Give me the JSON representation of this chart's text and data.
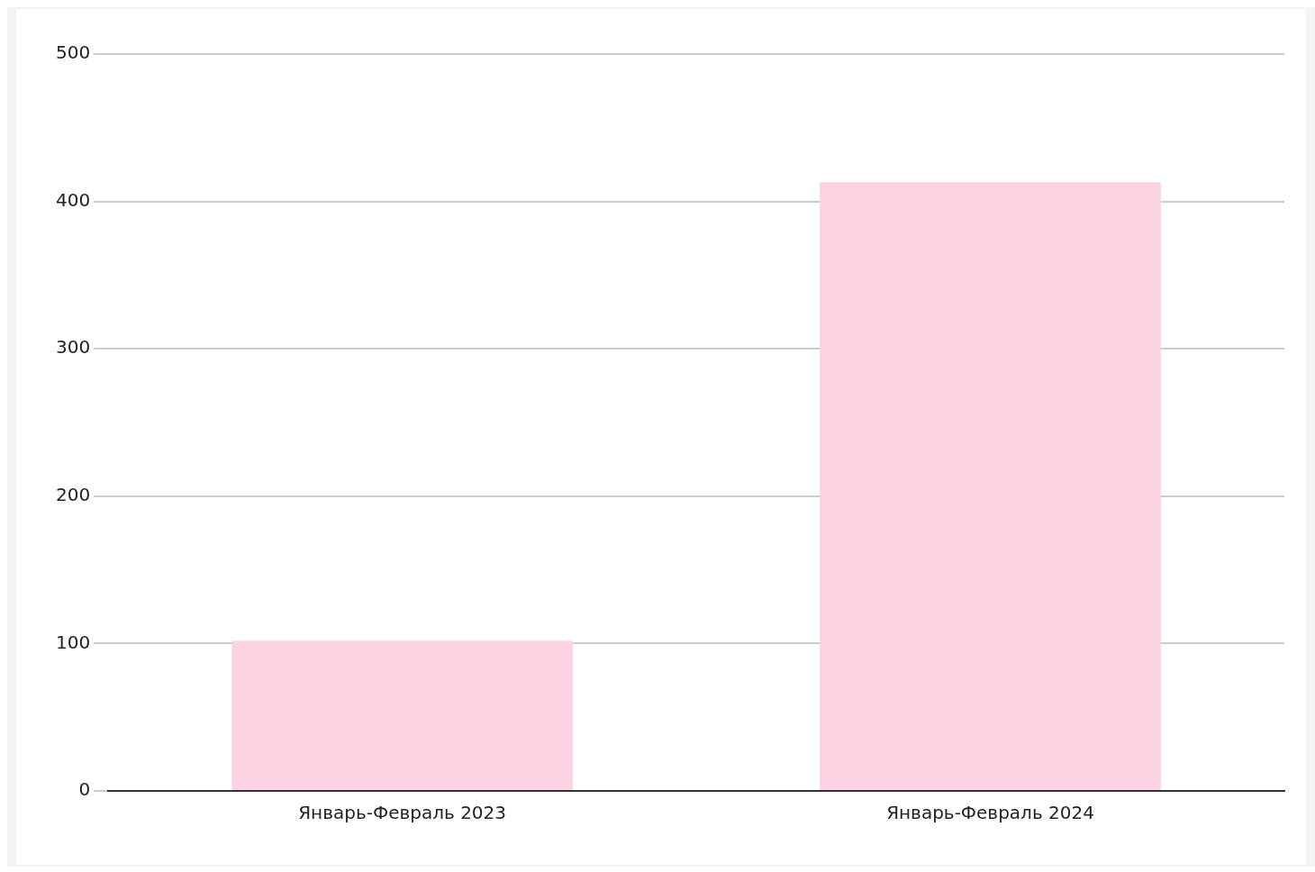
{
  "chart_data": {
    "type": "bar",
    "categories": [
      "Январь-Февраль 2023",
      "Январь-Февраль 2024"
    ],
    "values": [
      102,
      413
    ],
    "color": "#fcd3e4",
    "ylim": [
      0,
      500
    ],
    "yticks": [
      0,
      100,
      200,
      300,
      400,
      500
    ],
    "grid": "y",
    "legend": false
  }
}
